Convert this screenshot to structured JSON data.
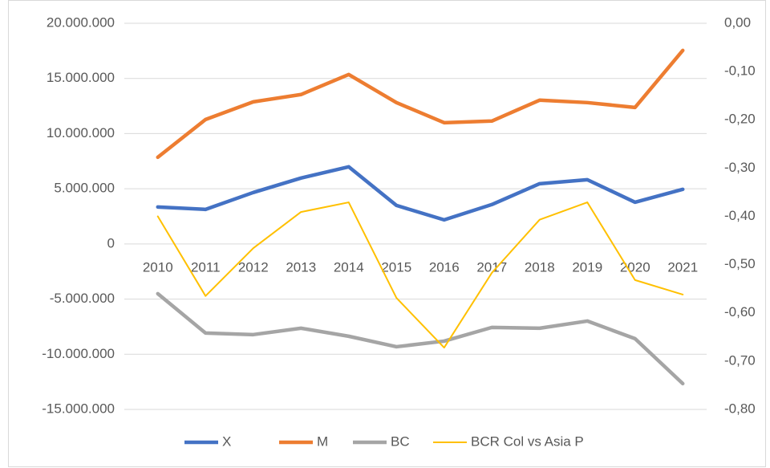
{
  "chart_data": {
    "type": "line",
    "categories": [
      "2010",
      "2011",
      "2012",
      "2013",
      "2014",
      "2015",
      "2016",
      "2017",
      "2018",
      "2019",
      "2020",
      "2021"
    ],
    "series": [
      {
        "name": "X",
        "color": "#4472c4",
        "values": [
          3350000,
          3130000,
          4660000,
          5970000,
          6990000,
          3490000,
          2180000,
          3570000,
          5460000,
          5820000,
          3780000,
          4950000
        ]
      },
      {
        "name": "M",
        "color": "#ed7d31",
        "values": [
          7860000,
          11280000,
          12880000,
          13540000,
          15360000,
          12810000,
          10990000,
          11140000,
          13030000,
          12810000,
          12370000,
          17540000
        ]
      },
      {
        "name": "BC",
        "color": "#a5a5a5",
        "values": [
          -4510000,
          -8080000,
          -8220000,
          -7640000,
          -8370000,
          -9320000,
          -8810000,
          -7570000,
          -7640000,
          -6990000,
          -8590000,
          -12660000
        ]
      },
      {
        "name": "BCR Col vs Asia P",
        "color": "#ffc000",
        "axis": "y2",
        "values": [
          -0.4,
          -0.565,
          -0.466,
          -0.391,
          -0.371,
          -0.569,
          -0.672,
          -0.517,
          -0.407,
          -0.371,
          -0.532,
          -0.562
        ]
      }
    ],
    "ylim": [
      -15000000,
      20000000
    ],
    "yticks": [
      {
        "value": 20000000,
        "label": "20.000.000"
      },
      {
        "value": 15000000,
        "label": "15.000.000"
      },
      {
        "value": 10000000,
        "label": "10.000.000"
      },
      {
        "value": 5000000,
        "label": "5.000.000"
      },
      0,
      {
        "value": -5000000,
        "label": "-5.000.000"
      },
      {
        "value": -10000000,
        "label": "-10.000.000"
      },
      {
        "value": -15000000,
        "label": "-15.000.000"
      }
    ],
    "y2lim": [
      -0.8,
      0
    ],
    "y2ticks": [
      {
        "value": 0,
        "label": "0,00"
      },
      {
        "value": -0.1,
        "label": "-0,10"
      },
      {
        "value": -0.2,
        "label": "-0,20"
      },
      {
        "value": -0.3,
        "label": "-0,30"
      },
      {
        "value": -0.4,
        "label": "-0,40"
      },
      {
        "value": -0.5,
        "label": "-0,50"
      },
      {
        "value": -0.6,
        "label": "-0,60"
      },
      {
        "value": -0.7,
        "label": "-0,70"
      },
      {
        "value": -0.8,
        "label": "-0,80"
      }
    ],
    "grid": true,
    "legend": "bottom"
  }
}
